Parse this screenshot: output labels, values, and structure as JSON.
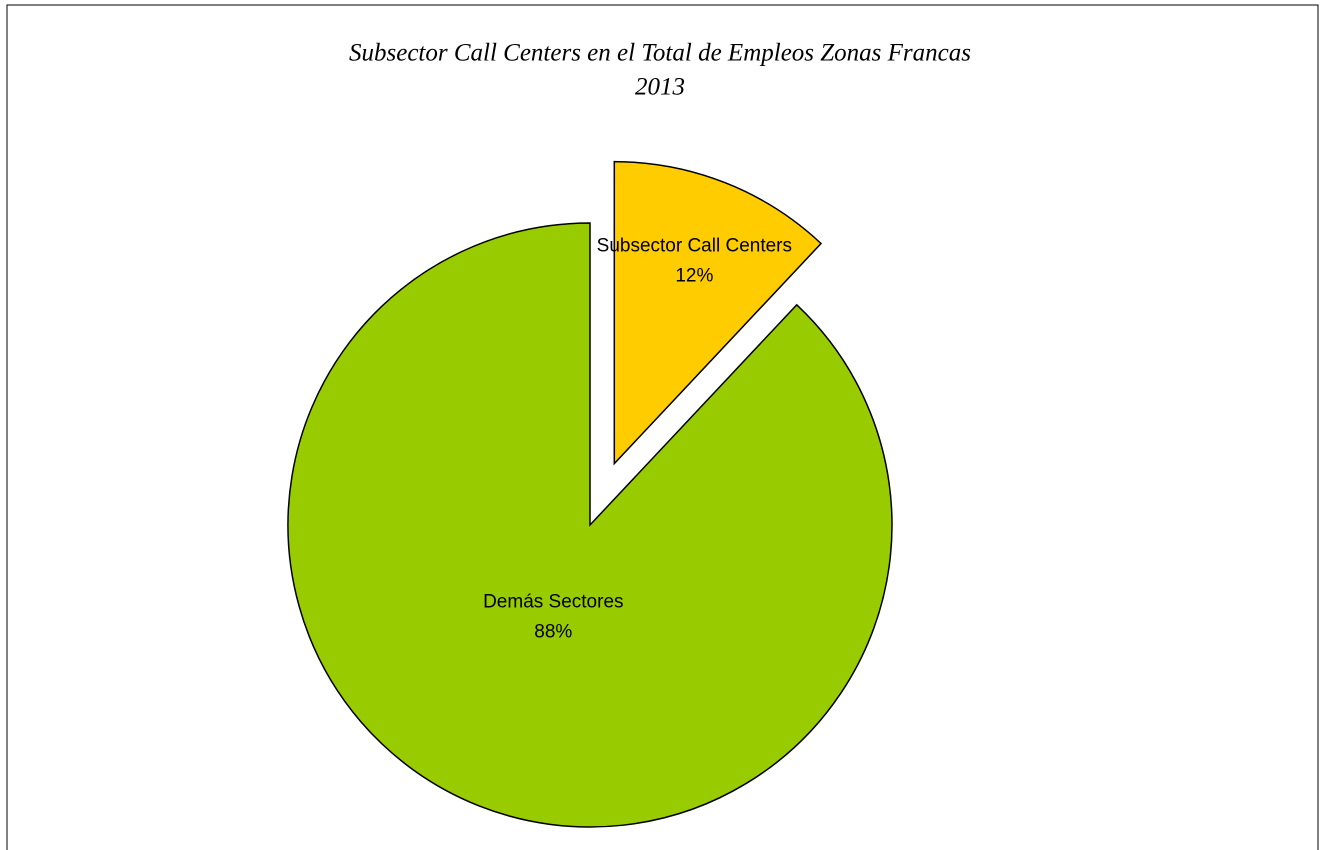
{
  "chart_data": {
    "type": "pie",
    "title": "Subsector Call Centers en el Total de Empleos Zonas Francas",
    "subtitle": "2013",
    "categories": [
      "Subsector Call Centers",
      "Demás Sectores"
    ],
    "values": [
      12,
      88
    ],
    "value_labels": [
      "12%",
      "88%"
    ],
    "colors": [
      "#ffcc00",
      "#99cc00"
    ]
  }
}
